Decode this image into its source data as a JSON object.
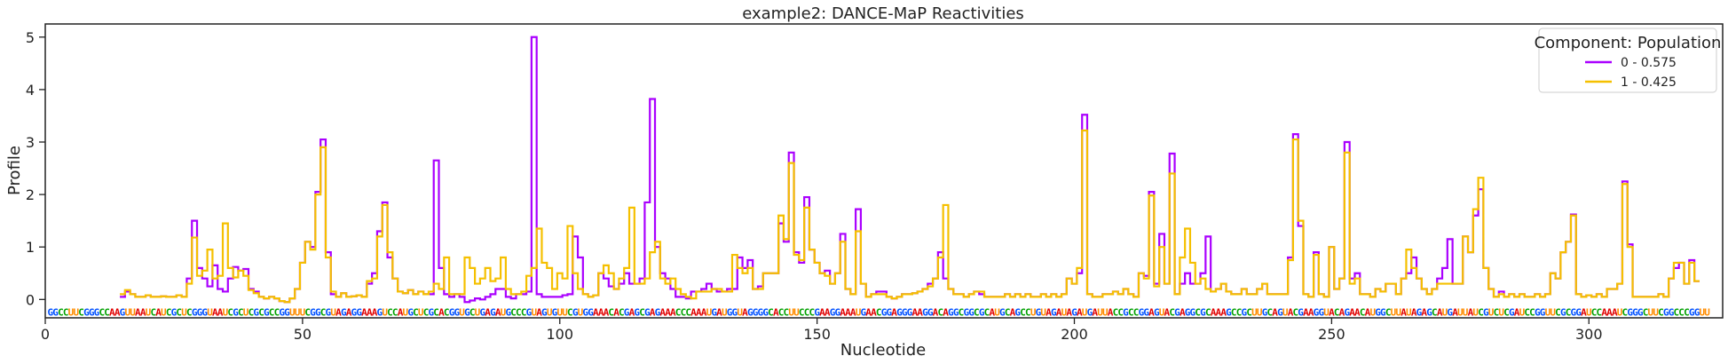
{
  "chart_data": {
    "type": "line",
    "title": "example2: DANCE-MaP Reactivities",
    "xlabel": "Nucleotide",
    "ylabel": "Profile",
    "xlim": [
      0,
      326
    ],
    "ylim": [
      -0.35,
      5.25
    ],
    "xticks": [
      0,
      50,
      100,
      150,
      200,
      250,
      300
    ],
    "yticks": [
      0,
      1,
      2,
      3,
      4,
      5
    ],
    "legend": {
      "title": "Component: Population",
      "placement": "top-right"
    },
    "x_start": 15,
    "series": [
      {
        "name": "0 - 0.575",
        "color": "#aa00ff",
        "values": [
          0.05,
          0.15,
          0.1,
          0.05,
          0.05,
          0.08,
          0.05,
          0.05,
          0.06,
          0.05,
          0.05,
          0.08,
          0.05,
          0.4,
          1.5,
          0.6,
          0.4,
          0.25,
          0.65,
          0.2,
          0.15,
          0.4,
          0.62,
          0.55,
          0.58,
          0.2,
          0.15,
          0.05,
          0.02,
          0.05,
          0.02,
          -0.03,
          -0.05,
          0.02,
          0.2,
          0.7,
          1.1,
          1.0,
          2.05,
          3.05,
          0.9,
          0.1,
          0.05,
          0.12,
          0.05,
          0.06,
          0.08,
          0.05,
          0.3,
          0.5,
          1.3,
          1.85,
          0.8,
          0.4,
          0.15,
          0.12,
          0.18,
          0.1,
          0.15,
          0.1,
          0.1,
          2.65,
          0.6,
          0.1,
          0.05,
          0.1,
          0.05,
          -0.05,
          -0.02,
          0.02,
          0.0,
          0.05,
          0.1,
          0.2,
          0.2,
          0.05,
          0.02,
          0.1,
          0.1,
          0.15,
          5.0,
          0.1,
          0.05,
          0.05,
          0.05,
          0.05,
          0.08,
          0.1,
          1.2,
          0.8,
          0.1,
          0.05,
          0.08,
          0.5,
          0.4,
          0.25,
          0.2,
          0.3,
          0.5,
          0.3,
          0.3,
          0.4,
          1.85,
          3.82,
          1.0,
          0.5,
          0.4,
          0.2,
          0.05,
          0.05,
          0.02,
          0.15,
          0.15,
          0.2,
          0.3,
          0.2,
          0.15,
          0.15,
          0.2,
          0.2,
          0.8,
          0.6,
          0.75,
          0.2,
          0.25,
          0.5,
          0.5,
          0.5,
          1.45,
          1.1,
          2.8,
          0.9,
          0.7,
          1.95,
          0.95,
          0.7,
          0.5,
          0.55,
          0.3,
          0.5,
          1.25,
          0.2,
          0.1,
          1.72,
          0.3,
          0.05,
          0.1,
          0.15,
          0.15,
          0.05,
          0.02,
          0.05,
          0.1,
          0.1,
          0.12,
          0.15,
          0.2,
          0.3,
          0.4,
          0.9,
          0.4,
          0.2,
          0.1,
          0.1,
          0.05,
          0.1,
          0.15,
          0.1,
          0.05,
          0.05,
          0.05,
          0.05,
          0.1,
          0.05,
          0.1,
          0.05,
          0.1,
          0.05,
          0.05,
          0.1,
          0.05,
          0.1,
          0.05,
          0.1,
          0.4,
          0.3,
          0.5,
          3.52,
          0.1,
          0.05,
          0.05,
          0.1,
          0.1,
          0.15,
          0.1,
          0.2,
          0.1,
          0.05,
          0.5,
          0.45,
          2.05,
          0.3,
          1.25,
          0.3,
          2.78,
          0.1,
          0.3,
          0.5,
          0.3,
          0.3,
          0.5,
          1.2,
          0.15,
          0.2,
          0.3,
          0.15,
          0.1,
          0.1,
          0.2,
          0.1,
          0.1,
          0.2,
          0.3,
          0.1,
          0.1,
          0.1,
          0.1,
          0.8,
          3.15,
          1.4,
          0.1,
          0.05,
          0.9,
          0.1,
          0.05,
          1.0,
          0.2,
          0.4,
          3.0,
          0.4,
          0.5,
          0.1,
          0.1,
          0.05,
          0.2,
          0.15,
          0.3,
          0.3,
          0.1,
          0.4,
          0.5,
          0.8,
          0.4,
          0.2,
          0.1,
          0.2,
          0.4,
          0.6,
          1.15,
          0.3,
          0.3,
          1.2,
          0.9,
          1.6,
          2.1,
          0.6,
          0.2,
          0.05,
          0.15,
          0.05,
          0.1,
          0.05,
          0.1,
          0.05,
          0.05,
          0.1,
          0.05,
          0.1,
          0.5,
          0.4,
          0.9,
          1.1,
          1.62,
          0.1,
          0.05,
          0.08,
          0.05,
          0.1,
          0.05,
          0.2,
          0.2,
          0.3,
          2.25,
          1.05,
          0.05,
          0.05,
          0.05,
          0.05,
          0.05,
          0.1,
          0.05,
          0.4,
          0.6,
          0.7,
          0.3,
          0.75,
          0.35
        ]
      },
      {
        "name": "1 - 0.425",
        "color": "#f5c000",
        "values": [
          0.1,
          0.18,
          0.1,
          0.05,
          0.05,
          0.08,
          0.05,
          0.05,
          0.06,
          0.05,
          0.05,
          0.08,
          0.05,
          0.3,
          1.18,
          0.45,
          0.55,
          0.95,
          0.4,
          0.45,
          1.45,
          0.6,
          0.42,
          0.55,
          0.45,
          0.18,
          0.12,
          0.05,
          0.02,
          0.05,
          0.02,
          -0.03,
          -0.05,
          0.02,
          0.2,
          0.7,
          1.1,
          0.95,
          2.0,
          2.9,
          0.8,
          0.15,
          0.05,
          0.12,
          0.05,
          0.06,
          0.08,
          0.05,
          0.35,
          0.4,
          1.2,
          1.8,
          0.9,
          0.4,
          0.15,
          0.12,
          0.18,
          0.1,
          0.15,
          0.1,
          0.15,
          0.3,
          0.2,
          0.8,
          0.1,
          0.1,
          0.1,
          0.8,
          0.6,
          0.3,
          0.4,
          0.6,
          0.35,
          0.4,
          0.8,
          0.2,
          0.1,
          0.1,
          0.15,
          0.45,
          0.6,
          1.35,
          0.7,
          0.6,
          0.2,
          0.5,
          0.4,
          1.4,
          0.5,
          0.2,
          0.1,
          0.05,
          0.08,
          0.5,
          0.65,
          0.5,
          0.2,
          0.4,
          0.6,
          1.75,
          0.3,
          0.3,
          0.4,
          0.9,
          1.1,
          0.4,
          0.3,
          0.4,
          0.2,
          0.1,
          0.05,
          0.02,
          0.15,
          0.15,
          0.15,
          0.2,
          0.2,
          0.15,
          0.15,
          0.85,
          0.6,
          0.5,
          0.6,
          0.2,
          0.2,
          0.5,
          0.5,
          0.5,
          1.6,
          1.15,
          2.6,
          0.85,
          0.75,
          1.75,
          0.95,
          0.7,
          0.5,
          0.45,
          0.3,
          0.5,
          1.1,
          0.2,
          0.1,
          1.3,
          0.3,
          0.05,
          0.1,
          0.1,
          0.1,
          0.05,
          0.02,
          0.05,
          0.1,
          0.1,
          0.12,
          0.15,
          0.2,
          0.25,
          0.4,
          0.8,
          1.8,
          0.2,
          0.1,
          0.1,
          0.05,
          0.1,
          0.15,
          0.15,
          0.05,
          0.05,
          0.05,
          0.05,
          0.1,
          0.05,
          0.1,
          0.05,
          0.1,
          0.05,
          0.05,
          0.1,
          0.05,
          0.1,
          0.05,
          0.1,
          0.4,
          0.3,
          0.6,
          3.22,
          0.1,
          0.05,
          0.05,
          0.1,
          0.1,
          0.15,
          0.1,
          0.2,
          0.1,
          0.05,
          0.5,
          0.4,
          1.98,
          0.25,
          1.0,
          0.3,
          2.4,
          0.1,
          0.8,
          1.35,
          0.7,
          0.3,
          0.4,
          0.2,
          0.15,
          0.2,
          0.3,
          0.15,
          0.1,
          0.1,
          0.2,
          0.1,
          0.1,
          0.2,
          0.3,
          0.1,
          0.1,
          0.1,
          0.1,
          0.75,
          3.05,
          1.5,
          0.1,
          0.05,
          0.85,
          0.1,
          0.05,
          1.0,
          0.2,
          0.4,
          2.8,
          0.3,
          0.4,
          0.1,
          0.1,
          0.05,
          0.2,
          0.15,
          0.3,
          0.3,
          0.1,
          0.4,
          0.95,
          0.6,
          0.4,
          0.2,
          0.1,
          0.2,
          0.3,
          0.3,
          0.3,
          0.3,
          0.3,
          1.2,
          0.9,
          1.72,
          2.32,
          0.6,
          0.2,
          0.05,
          0.1,
          0.05,
          0.1,
          0.05,
          0.1,
          0.05,
          0.05,
          0.1,
          0.05,
          0.1,
          0.5,
          0.4,
          0.9,
          1.1,
          1.6,
          0.1,
          0.05,
          0.08,
          0.05,
          0.1,
          0.05,
          0.2,
          0.2,
          0.3,
          2.2,
          1.0,
          0.05,
          0.05,
          0.05,
          0.05,
          0.05,
          0.1,
          0.05,
          0.4,
          0.7,
          0.7,
          0.3,
          0.7,
          0.35
        ]
      }
    ],
    "sequence": {
      "text": "GGCCUUCGGGCCAAGUUAAUCAUCGCUCGGGUAAUCGCUCGCGCCGGUUUCGGCGUAGAGGAAAGUCCAUGCUCGCACGGUGCUGAGAUGCCCGUAGUGUUCGUGGAAACACGAGCGAGAAACCCAAAUGAUGGUAGGGGCACCUUCCCGAAGGAAAUGAACGGAGGGAAGGACAGGCGGCGCAUGCAGCCUGUAGAUAGAUGAUUACCGCCGGAGUACGAGGCGCAAAGCCGCUUGCAGUACGAAGGUACAGAACAUGGCUUAUAGAGCAUGAUUAUCGUCUCGAUCCGGUUCGCGGAUCCAAAUCGGGCUUCGGCCCGGUU",
      "colors": {
        "A": "#e00000",
        "U": "#ff8c00",
        "G": "#0050ff",
        "C": "#00a000"
      }
    }
  }
}
